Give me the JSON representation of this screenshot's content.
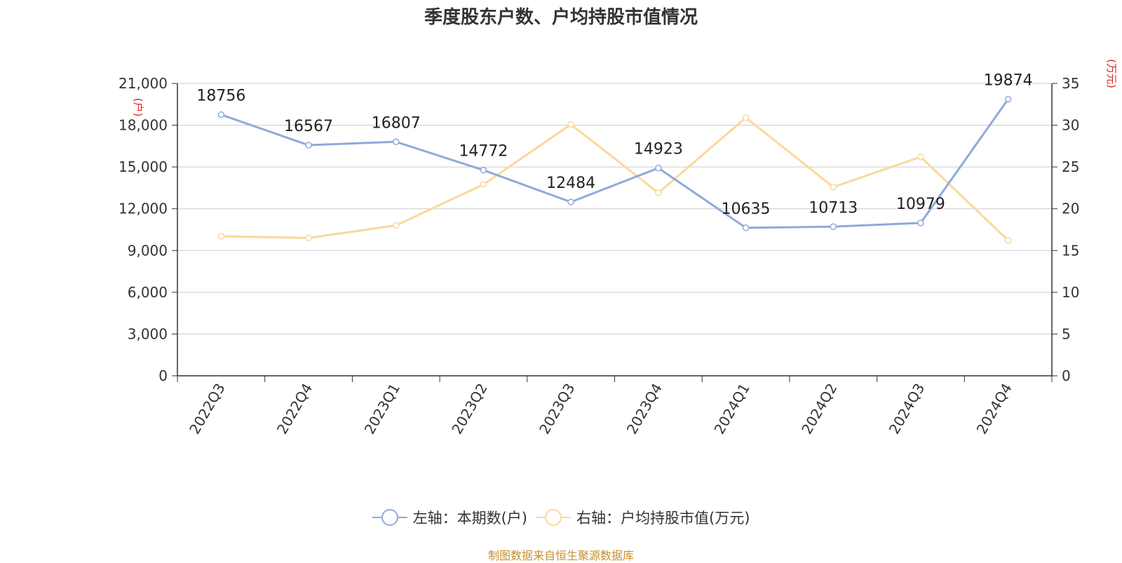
{
  "title": "季度股东户数、户均持股市值情况",
  "source": "制图数据来自恒生聚源数据库",
  "chart_data": {
    "type": "line",
    "title": "季度股东户数、户均持股市值情况",
    "categories": [
      "2022Q3",
      "2022Q4",
      "2023Q1",
      "2023Q2",
      "2023Q3",
      "2023Q4",
      "2024Q1",
      "2024Q2",
      "2024Q3",
      "2024Q4"
    ],
    "y_left": {
      "unit_label": "(户)",
      "ylim": [
        0,
        21000
      ],
      "ticks": [
        "0",
        "3,000",
        "6,000",
        "9,000",
        "12,000",
        "15,000",
        "18,000",
        "21,000"
      ]
    },
    "y_right": {
      "unit_label": "(万元)",
      "ylim": [
        0,
        35
      ],
      "ticks": [
        "0",
        "5",
        "10",
        "15",
        "20",
        "25",
        "30",
        "35"
      ]
    },
    "grid": true,
    "legend_position": "bottom",
    "series": [
      {
        "name": "左轴：本期数(户)",
        "axis": "left",
        "color": "#8eabd8",
        "values": [
          18756,
          16567,
          16807,
          14772,
          12484,
          14923,
          10635,
          10713,
          10979,
          19874
        ],
        "labels": [
          "18756",
          "16567",
          "16807",
          "14772",
          "12484",
          "14923",
          "10635",
          "10713",
          "10979",
          "19874"
        ]
      },
      {
        "name": "右轴：户均持股市值(万元)",
        "axis": "right",
        "color": "#fbd89a",
        "values": [
          16.7,
          16.5,
          18.0,
          22.9,
          30.1,
          21.9,
          30.9,
          22.6,
          26.2,
          16.2
        ]
      }
    ]
  }
}
